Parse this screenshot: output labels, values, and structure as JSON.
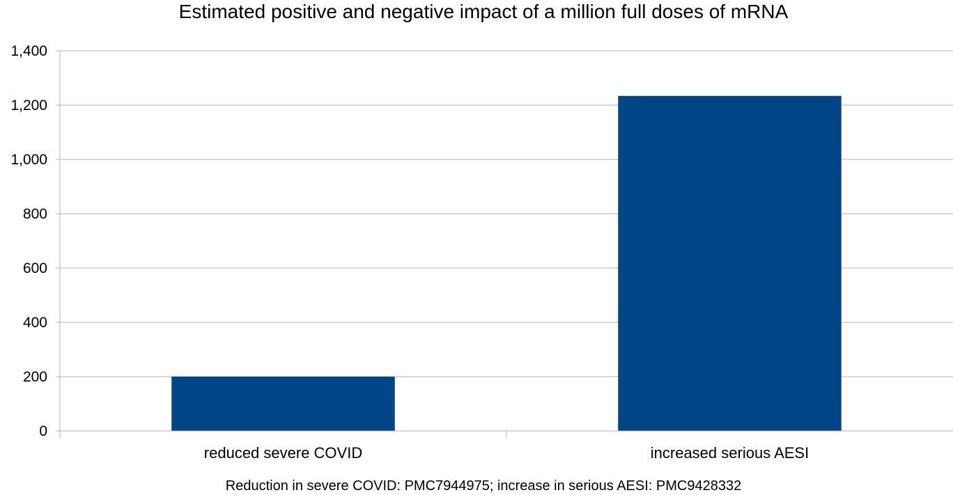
{
  "chart_data": {
    "type": "bar",
    "title": "Estimated positive and negative impact of a million full doses of mRNA",
    "categories": [
      "reduced severe COVID",
      "increased serious AESI"
    ],
    "values": [
      200,
      1234
    ],
    "ylim": [
      0,
      1400
    ],
    "yticks": [
      0,
      200,
      400,
      600,
      800,
      1000,
      1200,
      1400
    ],
    "ytick_labels": [
      "0",
      "200",
      "400",
      "600",
      "800",
      "1,000",
      "1,200",
      "1,400"
    ],
    "grid": true,
    "legend": "none",
    "xlabel": "",
    "ylabel": "",
    "footnote": "Reduction in severe COVID: PMC7944975; increase in serious AESI: PMC9428332",
    "colors": {
      "bar": "#004586",
      "grid": "#b3b3b3",
      "axis": "#b3b3b3"
    }
  }
}
